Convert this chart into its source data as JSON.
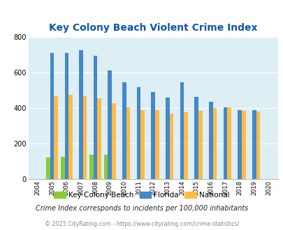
{
  "title": "Key Colony Beach Violent Crime Index",
  "years": [
    2004,
    2005,
    2006,
    2007,
    2008,
    2009,
    2010,
    2011,
    2012,
    2013,
    2014,
    2015,
    2016,
    2017,
    2018,
    2019,
    2020
  ],
  "kcb": [
    0,
    122,
    128,
    0,
    140,
    140,
    0,
    0,
    0,
    0,
    0,
    0,
    0,
    0,
    0,
    0,
    0
  ],
  "florida": [
    0,
    710,
    710,
    725,
    693,
    612,
    545,
    517,
    492,
    460,
    547,
    463,
    435,
    406,
    388,
    387,
    0
  ],
  "national": [
    0,
    467,
    474,
    467,
    455,
    429,
    403,
    390,
    390,
    368,
    378,
    383,
    399,
    403,
    385,
    380,
    0
  ],
  "kcb_color": "#88cc33",
  "florida_color": "#4488cc",
  "national_color": "#ffbb44",
  "bg_color": "#ddeef5",
  "title_color": "#1155aa",
  "ylabel_max": 800,
  "yticks": [
    0,
    200,
    400,
    600,
    800
  ],
  "subtitle": "Crime Index corresponds to incidents per 100,000 inhabitants",
  "footer": "© 2025 CityRating.com - https://www.cityrating.com/crime-statistics/",
  "legend_labels": [
    "Key Colony Beach",
    "Florida",
    "National"
  ],
  "bar_width": 0.27,
  "group_width": 0.85
}
